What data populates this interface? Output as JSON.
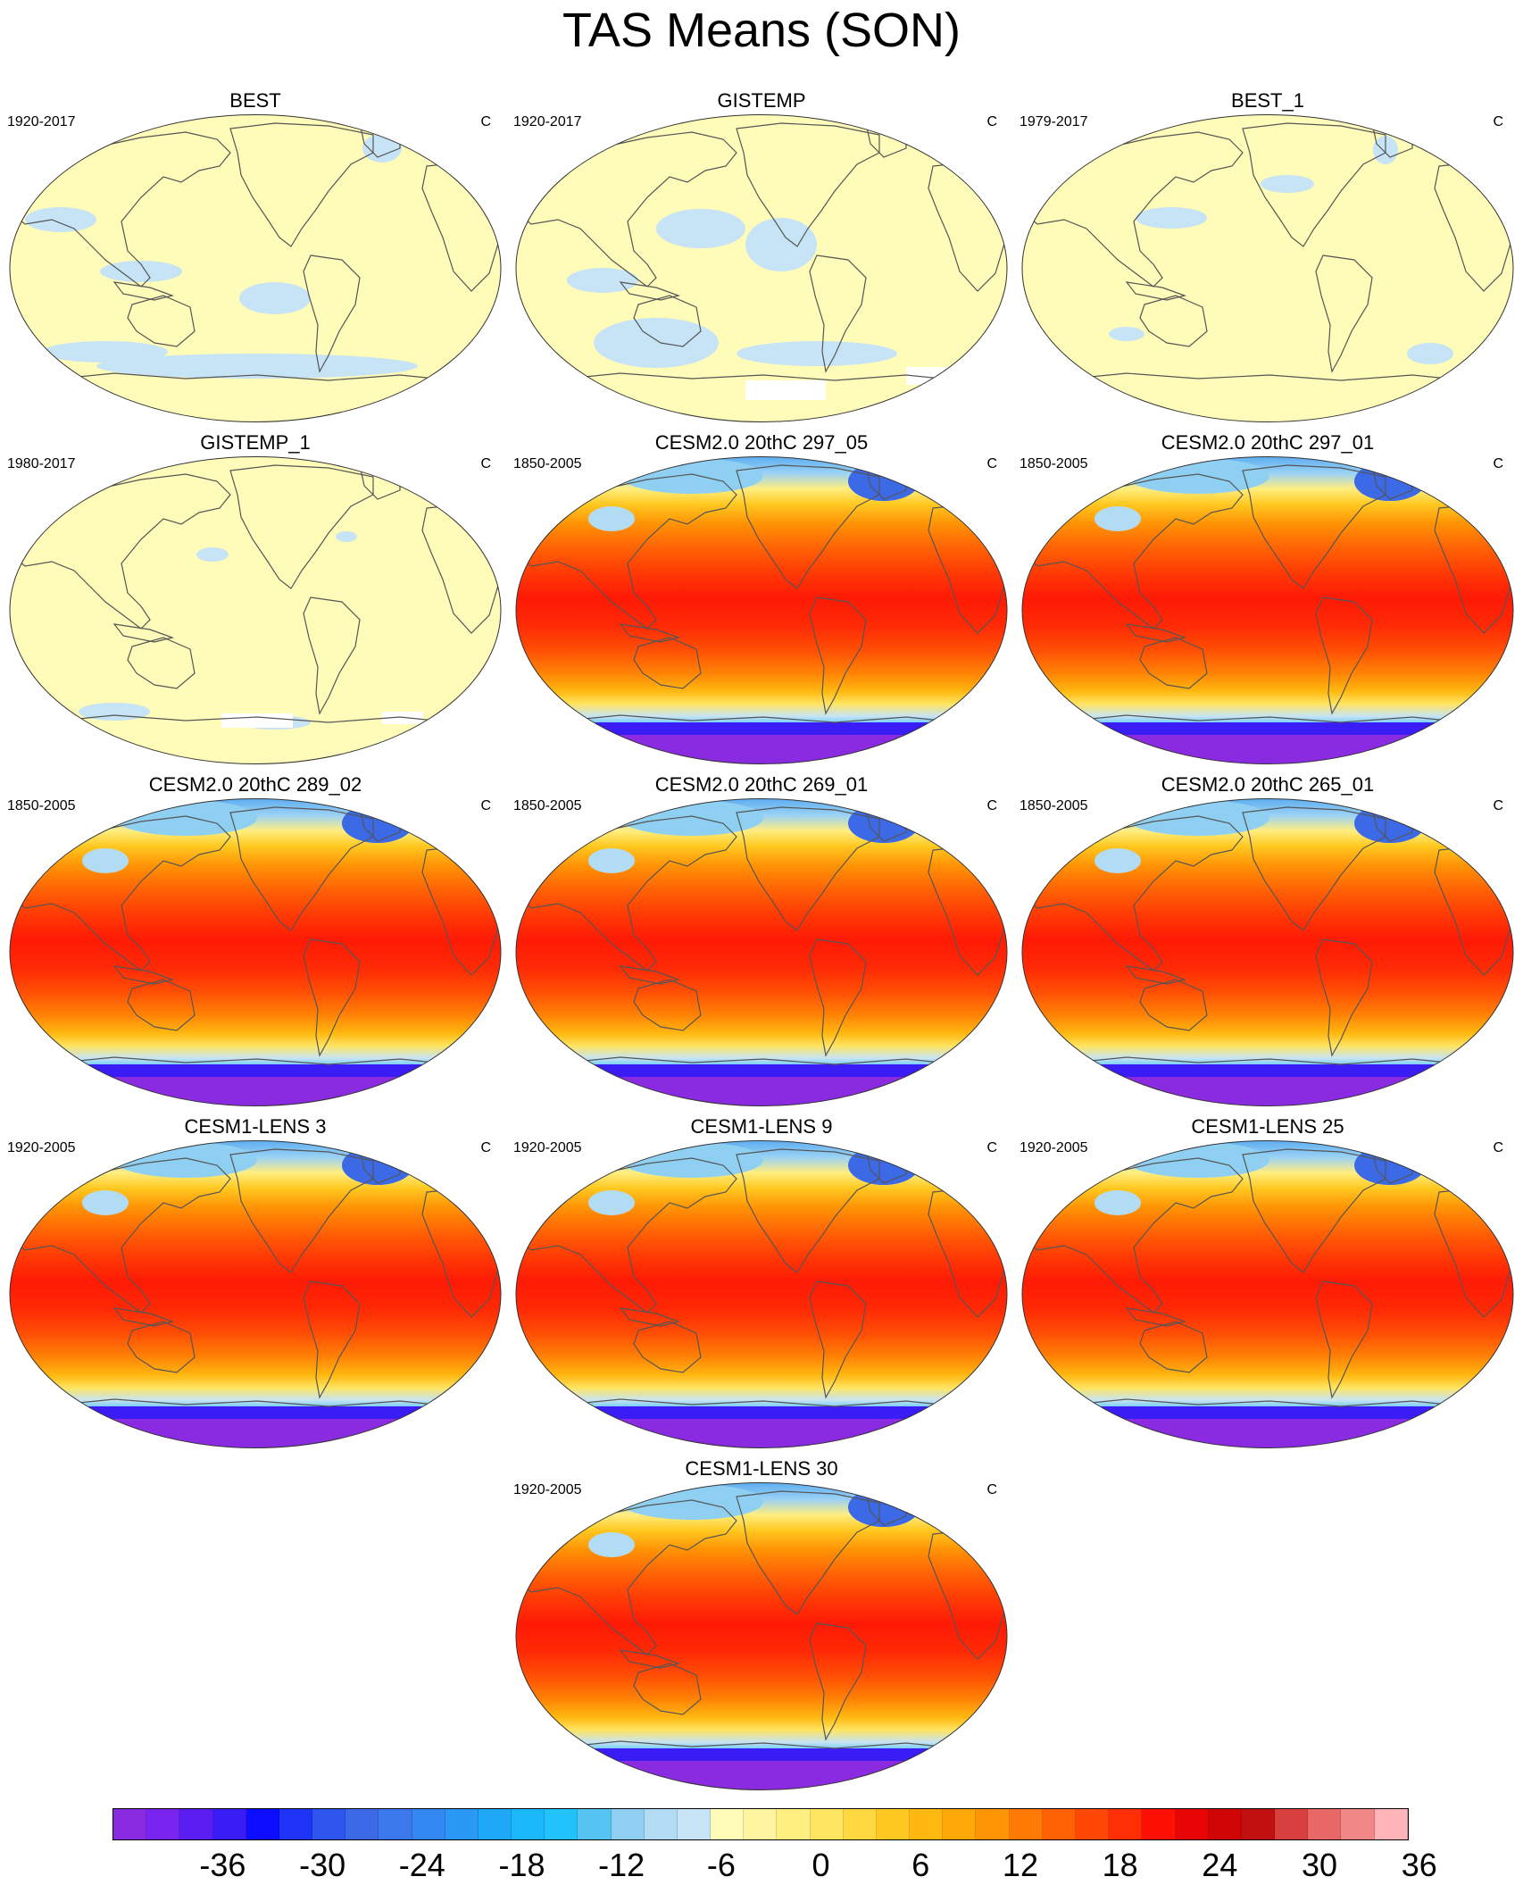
{
  "title": "TAS Means (SON)",
  "panels": [
    {
      "title": "BEST",
      "period": "1920-2017",
      "units": "C",
      "type": "obs",
      "variant": 0
    },
    {
      "title": "GISTEMP",
      "period": "1920-2017",
      "units": "C",
      "type": "obs",
      "variant": 1
    },
    {
      "title": "BEST_1",
      "period": "1979-2017",
      "units": "C",
      "type": "obs",
      "variant": 2
    },
    {
      "title": "GISTEMP_1",
      "period": "1980-2017",
      "units": "C",
      "type": "obs",
      "variant": 3
    },
    {
      "title": "CESM2.0 20thC 297_05",
      "period": "1850-2005",
      "units": "C",
      "type": "model",
      "variant": 0
    },
    {
      "title": "CESM2.0 20thC 297_01",
      "period": "1850-2005",
      "units": "C",
      "type": "model",
      "variant": 1
    },
    {
      "title": "CESM2.0 20thC 289_02",
      "period": "1850-2005",
      "units": "C",
      "type": "model",
      "variant": 2
    },
    {
      "title": "CESM2.0 20thC 269_01",
      "period": "1850-2005",
      "units": "C",
      "type": "model",
      "variant": 3
    },
    {
      "title": "CESM2.0 20thC 265_01",
      "period": "1850-2005",
      "units": "C",
      "type": "model",
      "variant": 4
    },
    {
      "title": "CESM1-LENS 3",
      "period": "1920-2005",
      "units": "C",
      "type": "model",
      "variant": 5
    },
    {
      "title": "CESM1-LENS 9",
      "period": "1920-2005",
      "units": "C",
      "type": "model",
      "variant": 6
    },
    {
      "title": "CESM1-LENS 25",
      "period": "1920-2005",
      "units": "C",
      "type": "model",
      "variant": 7
    },
    {
      "title": "CESM1-LENS 30",
      "period": "1920-2005",
      "units": "C",
      "type": "model",
      "variant": 8
    }
  ],
  "colorbar": {
    "labels": [
      "-36",
      "-30",
      "-24",
      "-18",
      "-12",
      "-6",
      "0",
      "6",
      "12",
      "18",
      "24",
      "30",
      "36"
    ],
    "colors": [
      "#8a2be2",
      "#7a24f0",
      "#5a1ef2",
      "#3a1cf5",
      "#0d0dff",
      "#1f33f5",
      "#2e55ee",
      "#3c6ae6",
      "#3a78ec",
      "#3388f2",
      "#2a98f5",
      "#1fa8f8",
      "#1ab8fa",
      "#22c2fb",
      "#55c4f2",
      "#8fd0f2",
      "#b2dcf3",
      "#c6e4f5",
      "#fffcb8",
      "#fff5a0",
      "#ffee80",
      "#ffe460",
      "#ffd840",
      "#ffc820",
      "#ffb810",
      "#ffa808",
      "#ff9405",
      "#ff7a05",
      "#ff6205",
      "#ff4805",
      "#ff2e05",
      "#ff1005",
      "#e80505",
      "#d00505",
      "#c01010",
      "#d84040",
      "#e86868",
      "#f08888",
      "#ffb4b8"
    ]
  }
}
